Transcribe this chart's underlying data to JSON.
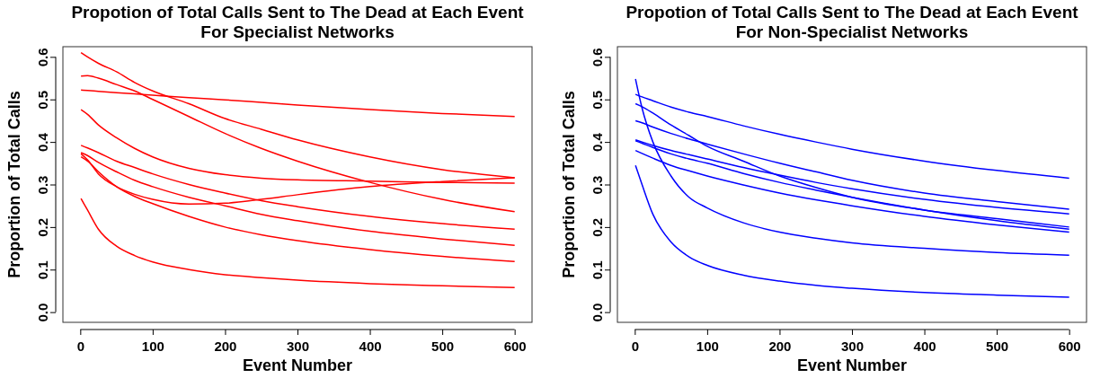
{
  "chart_data": [
    {
      "type": "line",
      "title": "Propotion of Total Calls Sent to The Dead at Each Event",
      "subtitle": "For Specialist Networks",
      "xlabel": "Event Number",
      "ylabel": "Proportion of Total Calls",
      "x": [
        1,
        10,
        25,
        50,
        75,
        100,
        150,
        200,
        250,
        300,
        400,
        500,
        600
      ],
      "xlim": [
        -24,
        624
      ],
      "ylim": [
        -0.024,
        0.624
      ],
      "xticks": [
        0,
        100,
        200,
        300,
        400,
        500,
        600
      ],
      "yticks": [
        {
          "value": 0,
          "label": "0.0"
        },
        0.1,
        0.2,
        0.3,
        0.4,
        0.5,
        0.6
      ],
      "grid": false,
      "line_style": "solid",
      "series": [
        {
          "color": "#ff0000",
          "values": [
            0.61,
            0.6,
            0.585,
            0.565,
            0.54,
            0.52,
            0.49,
            0.455,
            0.43,
            0.405,
            0.365,
            0.335,
            0.316
          ]
        },
        {
          "color": "#ff0000",
          "values": [
            0.555,
            0.556,
            0.55,
            0.535,
            0.52,
            0.5,
            0.46,
            0.42,
            0.385,
            0.355,
            0.305,
            0.265,
            0.236
          ]
        },
        {
          "color": "#ff0000",
          "values": [
            0.522,
            0.521,
            0.519,
            0.516,
            0.513,
            0.51,
            0.504,
            0.499,
            0.493,
            0.487,
            0.476,
            0.467,
            0.46
          ]
        },
        {
          "color": "#ff0000",
          "values": [
            0.476,
            0.465,
            0.44,
            0.41,
            0.385,
            0.365,
            0.338,
            0.323,
            0.315,
            0.311,
            0.308,
            0.305,
            0.303
          ]
        },
        {
          "color": "#ff0000",
          "values": [
            0.392,
            0.386,
            0.375,
            0.355,
            0.34,
            0.325,
            0.3,
            0.28,
            0.262,
            0.248,
            0.225,
            0.208,
            0.195
          ]
        },
        {
          "color": "#ff0000",
          "values": [
            0.375,
            0.368,
            0.352,
            0.33,
            0.31,
            0.295,
            0.27,
            0.25,
            0.23,
            0.215,
            0.19,
            0.172,
            0.157
          ]
        },
        {
          "color": "#ff0000",
          "values": [
            0.372,
            0.358,
            0.325,
            0.295,
            0.277,
            0.265,
            0.254,
            0.256,
            0.265,
            0.276,
            0.295,
            0.307,
            0.316
          ]
        },
        {
          "color": "#ff0000",
          "values": [
            0.365,
            0.355,
            0.33,
            0.295,
            0.272,
            0.255,
            0.225,
            0.2,
            0.182,
            0.168,
            0.147,
            0.131,
            0.119
          ]
        },
        {
          "color": "#ff0000",
          "values": [
            0.267,
            0.24,
            0.195,
            0.155,
            0.133,
            0.118,
            0.1,
            0.088,
            0.081,
            0.075,
            0.067,
            0.062,
            0.058
          ]
        }
      ]
    },
    {
      "type": "line",
      "title": "Propotion of Total Calls Sent to The Dead at Each Event",
      "subtitle": "For Non-Specialist Networks",
      "xlabel": "Event Number",
      "ylabel": "Proportion of Total Calls",
      "x": [
        1,
        10,
        25,
        50,
        75,
        100,
        150,
        200,
        250,
        300,
        400,
        500,
        600
      ],
      "xlim": [
        -24,
        624
      ],
      "ylim": [
        -0.024,
        0.624
      ],
      "xticks": [
        0,
        100,
        200,
        300,
        400,
        500,
        600
      ],
      "yticks": [
        {
          "value": 0,
          "label": "0.0"
        },
        0.1,
        0.2,
        0.3,
        0.4,
        0.5,
        0.6
      ],
      "grid": false,
      "line_style": "solid",
      "series": [
        {
          "color": "#0000ff",
          "values": [
            0.548,
            0.48,
            0.4,
            0.32,
            0.27,
            0.245,
            0.21,
            0.188,
            0.174,
            0.163,
            0.15,
            0.14,
            0.134
          ]
        },
        {
          "color": "#0000ff",
          "values": [
            0.345,
            0.3,
            0.23,
            0.165,
            0.13,
            0.11,
            0.087,
            0.073,
            0.063,
            0.056,
            0.046,
            0.04,
            0.035
          ]
        },
        {
          "color": "#0000ff",
          "values": [
            0.512,
            0.506,
            0.497,
            0.482,
            0.47,
            0.46,
            0.438,
            0.418,
            0.4,
            0.383,
            0.355,
            0.333,
            0.315
          ]
        },
        {
          "color": "#0000ff",
          "values": [
            0.49,
            0.483,
            0.468,
            0.44,
            0.415,
            0.39,
            0.355,
            0.32,
            0.293,
            0.27,
            0.24,
            0.22,
            0.2
          ]
        },
        {
          "color": "#0000ff",
          "values": [
            0.45,
            0.445,
            0.435,
            0.42,
            0.407,
            0.395,
            0.372,
            0.35,
            0.33,
            0.31,
            0.28,
            0.26,
            0.242
          ]
        },
        {
          "color": "#0000ff",
          "values": [
            0.405,
            0.4,
            0.392,
            0.38,
            0.37,
            0.36,
            0.34,
            0.322,
            0.305,
            0.29,
            0.265,
            0.246,
            0.231
          ]
        },
        {
          "color": "#0000ff",
          "values": [
            0.403,
            0.397,
            0.387,
            0.372,
            0.36,
            0.35,
            0.326,
            0.305,
            0.287,
            0.27,
            0.24,
            0.215,
            0.195
          ]
        },
        {
          "color": "#0000ff",
          "values": [
            0.38,
            0.373,
            0.362,
            0.345,
            0.332,
            0.32,
            0.299,
            0.28,
            0.264,
            0.25,
            0.225,
            0.205,
            0.188
          ]
        }
      ]
    }
  ]
}
